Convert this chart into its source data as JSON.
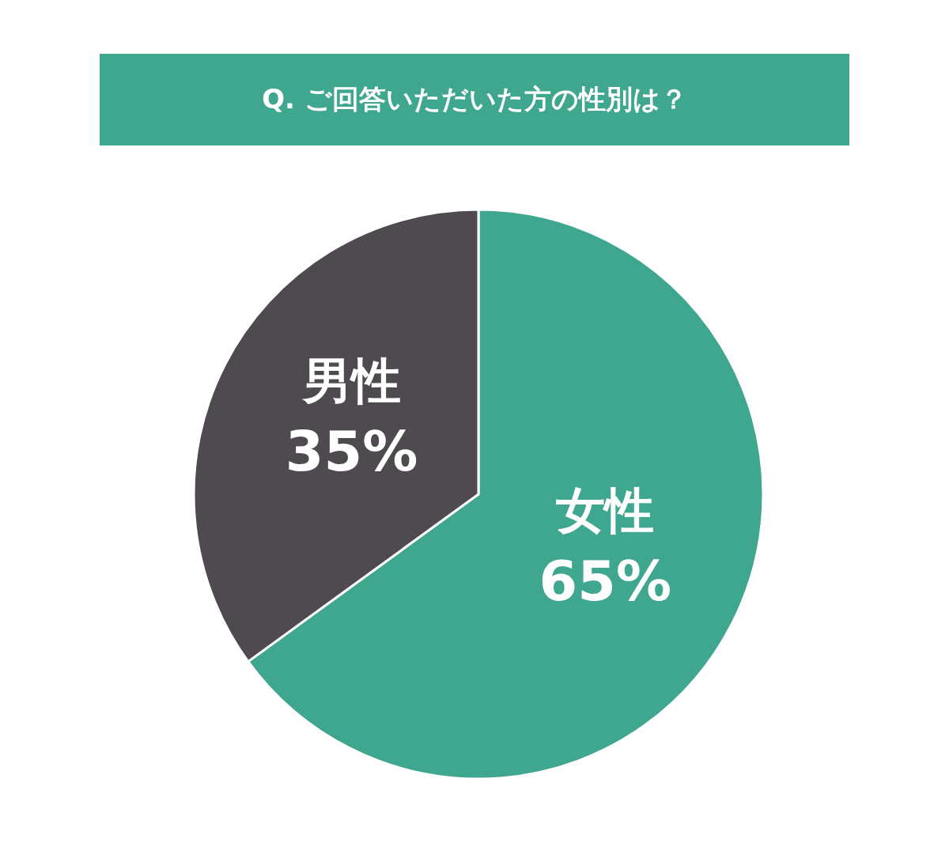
{
  "chart_data": {
    "type": "pie",
    "title": "Q. ご回答いただいた方の性別は？",
    "categories": [
      "女性",
      "男性"
    ],
    "values": [
      65,
      35
    ],
    "colors": [
      "#3fa68f",
      "#4f4a4f"
    ],
    "value_labels": [
      "65%",
      "35%"
    ]
  }
}
